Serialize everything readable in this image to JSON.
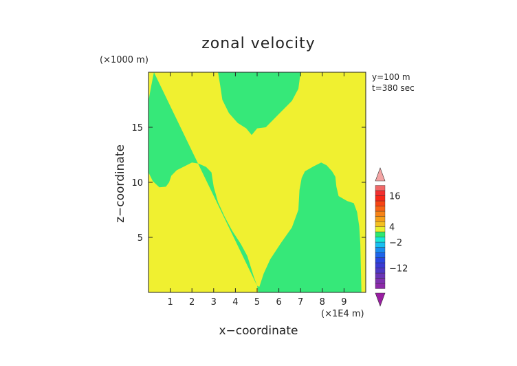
{
  "chart_data": {
    "type": "contour",
    "title": "zonal velocity",
    "xlabel": "x−coordinate",
    "ylabel": "z−coordinate",
    "x_unit": "(×1E4 m)",
    "y_unit": "(×1000 m)",
    "annotations": [
      "y=100 m",
      "t=380 sec"
    ],
    "xlim": [
      0,
      10
    ],
    "ylim": [
      0,
      20
    ],
    "x_ticks": [
      1,
      2,
      3,
      4,
      5,
      6,
      7,
      8,
      9
    ],
    "y_ticks": [
      5,
      10,
      15
    ],
    "colorbar": {
      "tick_labels": [
        {
          "label": "16",
          "value": 16
        },
        {
          "label": "4",
          "value": 4
        },
        {
          "label": "−2",
          "value": -2
        },
        {
          "label": "−12",
          "value": -12
        }
      ],
      "min": -22,
      "max": 22,
      "levels": [
        {
          "from": -22,
          "to": -20,
          "color": "#9a1ea2"
        },
        {
          "from": -20,
          "to": -18,
          "color": "#8d2aa8"
        },
        {
          "from": -18,
          "to": -16,
          "color": "#7e32ae"
        },
        {
          "from": -16,
          "to": -14,
          "color": "#6a34b6"
        },
        {
          "from": -14,
          "to": -12,
          "color": "#4e38c4"
        },
        {
          "from": -12,
          "to": -10,
          "color": "#3a3ad4"
        },
        {
          "from": -10,
          "to": -8,
          "color": "#2a46e0"
        },
        {
          "from": -8,
          "to": -6,
          "color": "#1e64ea"
        },
        {
          "from": -6,
          "to": -4,
          "color": "#1a8cf0"
        },
        {
          "from": -4,
          "to": -2,
          "color": "#18bff0"
        },
        {
          "from": -2,
          "to": 0,
          "color": "#18e8d8"
        },
        {
          "from": 0,
          "to": 2,
          "color": "#2ee870"
        },
        {
          "from": 2,
          "to": 4,
          "color": "#e8f030"
        },
        {
          "from": 4,
          "to": 6,
          "color": "#f4c020"
        },
        {
          "from": 6,
          "to": 8,
          "color": "#f5a018"
        },
        {
          "from": 8,
          "to": 10,
          "color": "#f68216"
        },
        {
          "from": 10,
          "to": 12,
          "color": "#f76414"
        },
        {
          "from": 12,
          "to": 14,
          "color": "#f74414"
        },
        {
          "from": 14,
          "to": 16,
          "color": "#f72818"
        },
        {
          "from": 16,
          "to": 18,
          "color": "#f23030"
        },
        {
          "from": 18,
          "to": 20,
          "color": "#f06868"
        },
        {
          "from": 20,
          "to": 22,
          "color": "#f3a4a4"
        }
      ]
    },
    "field": {
      "background_level": "2 to 4",
      "background_color": "#f0f030",
      "region_level": "0 to 2",
      "region_color": "#36e879",
      "regions": [
        {
          "points": [
            [
              0.25,
              20
            ],
            [
              5,
              20
            ],
            [
              5,
              14.9
            ],
            [
              4.75,
              14.3
            ],
            [
              4.5,
              14.9
            ],
            [
              4.1,
              15.4
            ],
            [
              3.7,
              16.3
            ],
            [
              3.4,
              17.5
            ],
            [
              3.3,
              18.8
            ],
            [
              3.2,
              20
            ],
            [
              0.25,
              20
            ],
            [
              0.1,
              18.5
            ],
            [
              0,
              17.4
            ],
            [
              0,
              10.9
            ],
            [
              0.2,
              10.1
            ],
            [
              0.5,
              9.55
            ],
            [
              0.8,
              9.6
            ],
            [
              0.95,
              10.0
            ],
            [
              1.05,
              10.6
            ],
            [
              1.3,
              11.1
            ],
            [
              1.6,
              11.4
            ],
            [
              2,
              11.8
            ],
            [
              2.3,
              11.7
            ],
            [
              2.65,
              11.4
            ],
            [
              2.9,
              10.9
            ],
            [
              3.0,
              9.6
            ],
            [
              3.2,
              8.2
            ],
            [
              3.5,
              6.9
            ],
            [
              3.85,
              5.6
            ],
            [
              4.25,
              4.4
            ],
            [
              4.55,
              3.3
            ],
            [
              4.85,
              1.4
            ],
            [
              5,
              0.6
            ]
          ]
        },
        {
          "points": [
            [
              5,
              0.6
            ],
            [
              5.1,
              0.5
            ],
            [
              5.3,
              1.7
            ],
            [
              5.6,
              3.0
            ],
            [
              6.1,
              4.5
            ],
            [
              6.6,
              5.9
            ],
            [
              6.9,
              7.5
            ],
            [
              6.95,
              9.3
            ],
            [
              7.05,
              10.4
            ],
            [
              7.2,
              11.0
            ],
            [
              7.6,
              11.45
            ],
            [
              7.95,
              11.8
            ],
            [
              8.2,
              11.55
            ],
            [
              8.45,
              11.0
            ],
            [
              8.6,
              10.5
            ],
            [
              8.65,
              9.6
            ],
            [
              8.75,
              8.75
            ],
            [
              9.15,
              8.3
            ],
            [
              9.45,
              8.1
            ],
            [
              9.6,
              7.3
            ],
            [
              9.7,
              6.0
            ],
            [
              9.75,
              4.4
            ],
            [
              9.8,
              0
            ],
            [
              5.05,
              0
            ],
            [
              5,
              0.6
            ]
          ]
        },
        {
          "points": [
            [
              5,
              20
            ],
            [
              7.0,
              20
            ],
            [
              6.9,
              18.5
            ],
            [
              6.6,
              17.4
            ],
            [
              6.0,
              16.2
            ],
            [
              5.4,
              15.0
            ],
            [
              5,
              14.9
            ]
          ]
        }
      ]
    }
  }
}
